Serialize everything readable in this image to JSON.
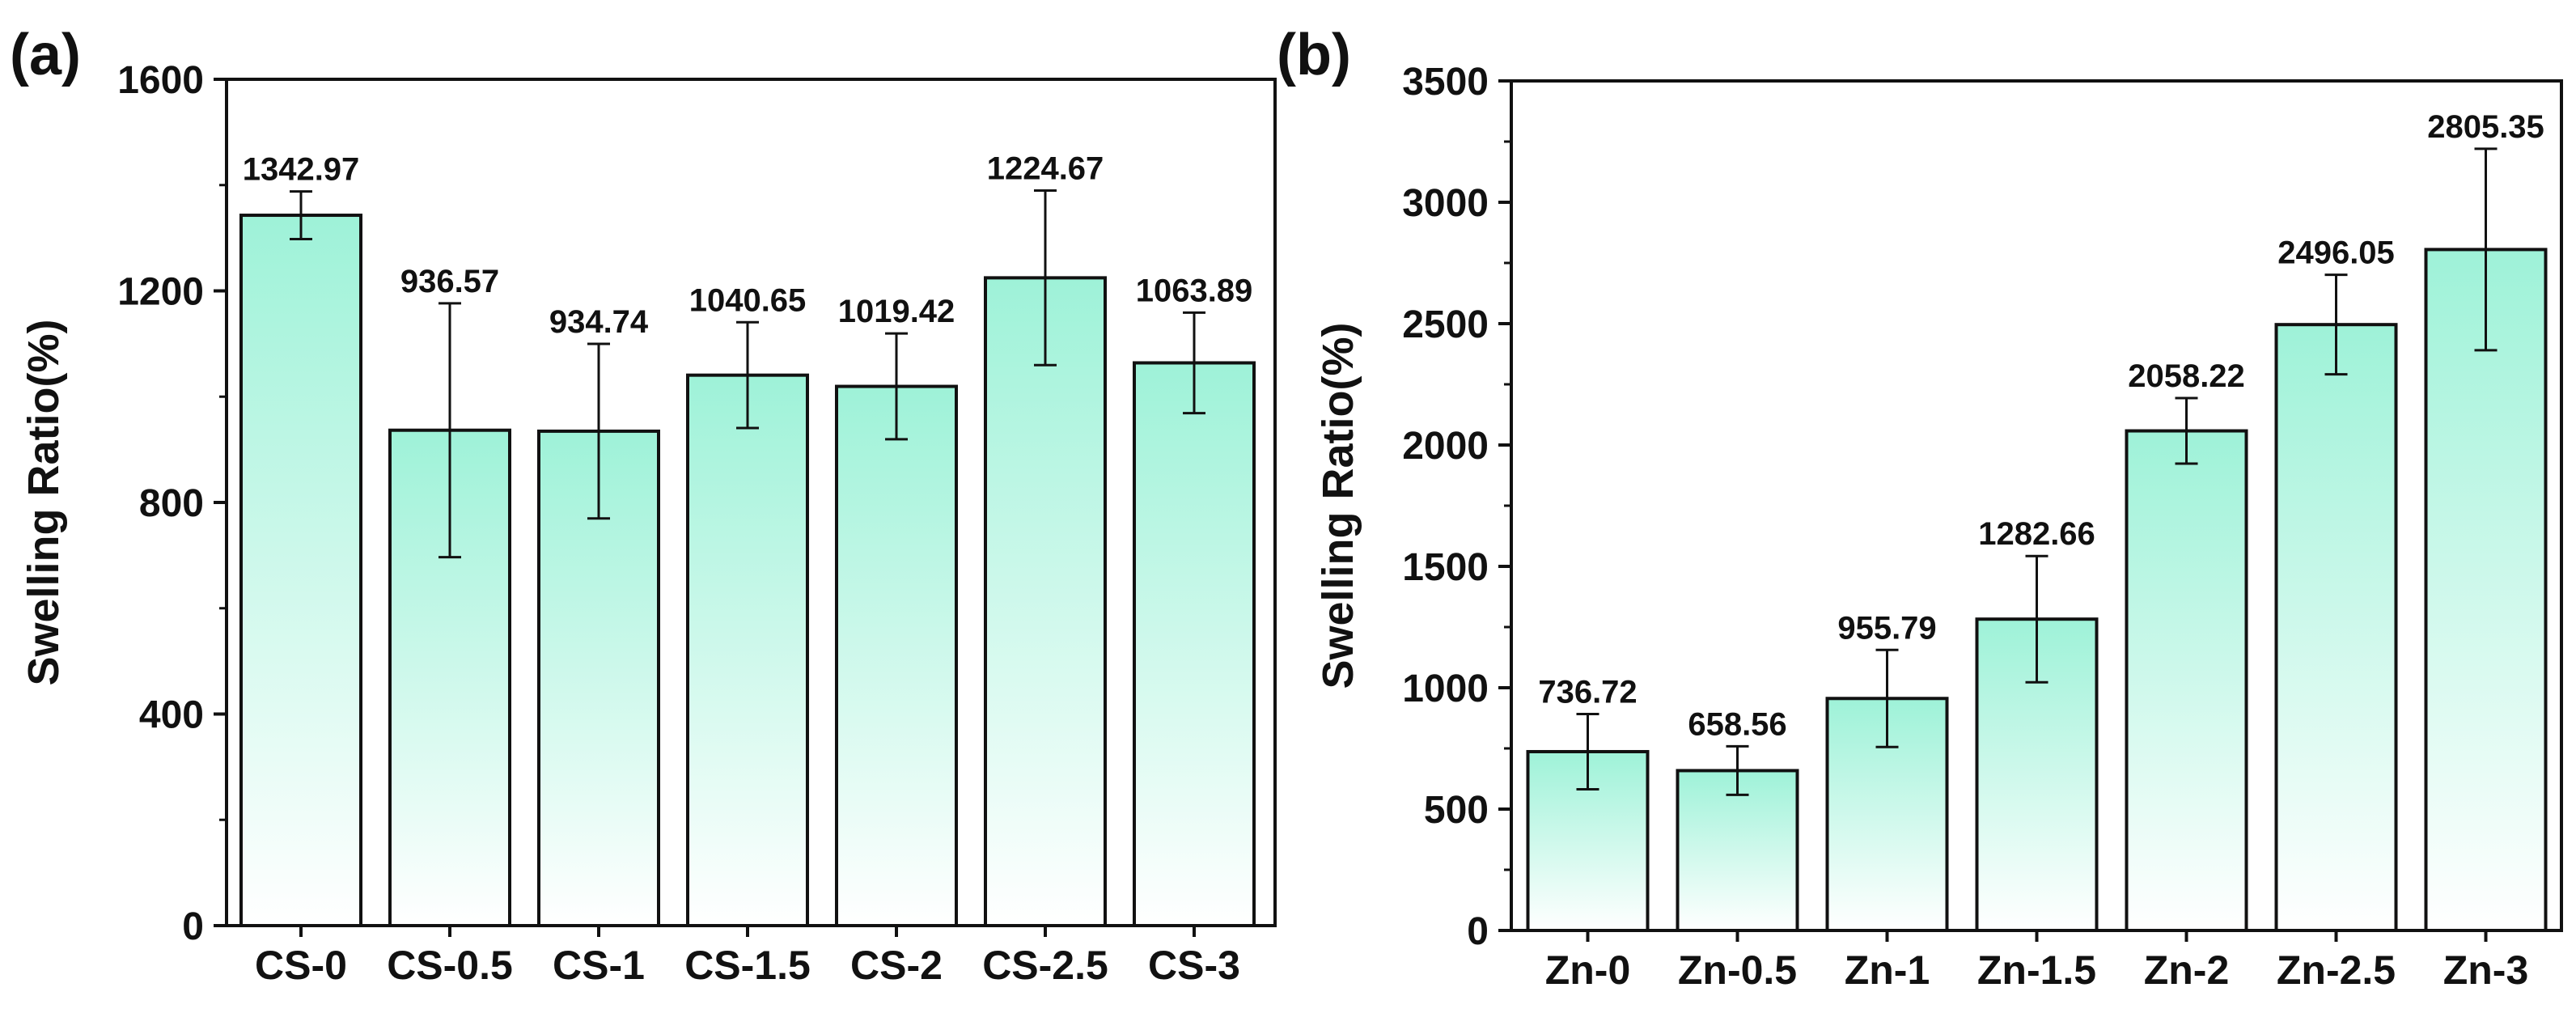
{
  "chart_data": [
    {
      "type": "bar",
      "panel_label": "(a)",
      "ylabel": "Swelling Ratio(%)",
      "xlabel": "",
      "ylim": [
        0,
        1600
      ],
      "yticks": [
        0,
        400,
        800,
        1200,
        1600
      ],
      "categories": [
        "CS-0",
        "CS-0.5",
        "CS-1",
        "CS-1.5",
        "CS-2",
        "CS-2.5",
        "CS-3"
      ],
      "values": [
        1342.97,
        936.57,
        934.74,
        1040.65,
        1019.42,
        1224.67,
        1063.89
      ],
      "value_labels": [
        "1342.97",
        "936.57",
        "934.74",
        "1040.65",
        "1019.42",
        "1224.67",
        "1063.89"
      ],
      "error": [
        45,
        240,
        165,
        100,
        100,
        165,
        95
      ]
    },
    {
      "type": "bar",
      "panel_label": "(b)",
      "ylabel": "Swelling Ratio(%)",
      "xlabel": "",
      "ylim": [
        0,
        3500
      ],
      "yticks": [
        0,
        500,
        1000,
        1500,
        2000,
        2500,
        3000,
        3500
      ],
      "categories": [
        "Zn-0",
        "Zn-0.5",
        "Zn-1",
        "Zn-1.5",
        "Zn-2",
        "Zn-2.5",
        "Zn-3"
      ],
      "values": [
        736.72,
        658.56,
        955.79,
        1282.66,
        2058.22,
        2496.05,
        2805.35
      ],
      "value_labels": [
        "736.72",
        "658.56",
        "955.79",
        "1282.66",
        "2058.22",
        "2496.05",
        "2805.35"
      ],
      "error": [
        155,
        100,
        200,
        260,
        135,
        205,
        415
      ]
    }
  ],
  "colors": {
    "bar_top": "#9ef2d8",
    "bar_bottom": "#ffffff",
    "outline": "#111111"
  }
}
